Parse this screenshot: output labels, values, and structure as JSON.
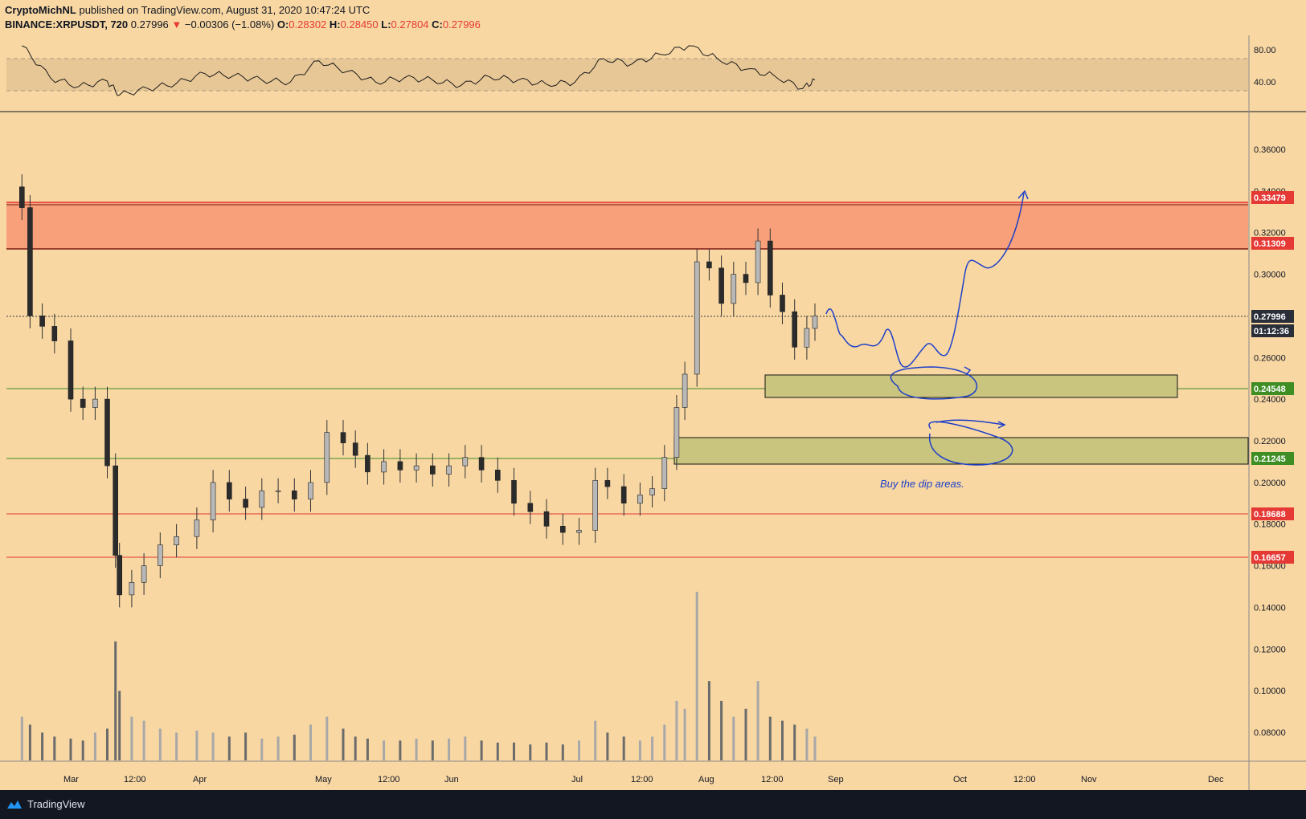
{
  "header": {
    "author": "CryptoMichNL",
    "published": "published on TradingView.com, August 31, 2020 10:47:24 UTC",
    "symbol": "BINANCE:XRPUSDT, 720",
    "last": "0.27996",
    "change_arrow": "▼",
    "change": "−0.00306 (−1.08%)",
    "o_label": "O:",
    "o_value": "0.28302",
    "h_label": "H:",
    "h_value": "0.28450",
    "l_label": "L:",
    "l_value": "0.27804",
    "c_label": "C:",
    "c_value": "0.27996"
  },
  "footer": {
    "brand": "TradingView",
    "logo_icon": "tradingview-logo-icon"
  },
  "colors": {
    "background": "#f8d7a3",
    "resistance_zone": "#f7a07a",
    "support_zone": "#c9c47e",
    "red_level": "#e53935",
    "green_level": "#3e8e23",
    "drawing": "#1e40c8",
    "candle_up": "#b8b8b8",
    "candle_down": "#2b2b2b"
  },
  "chart_data": [
    {
      "type": "line",
      "name": "RSI",
      "ylim": [
        20,
        95
      ],
      "yticks": [
        "80.00",
        "40.00"
      ],
      "band": [
        30,
        70
      ],
      "x": [
        "Feb 18",
        "Feb 25",
        "Mar 3",
        "Mar 10",
        "Mar 13",
        "Mar 20",
        "Mar 27",
        "Apr 3",
        "Apr 10",
        "Apr 17",
        "Apr 24",
        "May 1",
        "May 8",
        "May 15",
        "May 22",
        "May 29",
        "Jun 5",
        "Jun 12",
        "Jun 19",
        "Jun 26",
        "Jul 3",
        "Jul 10",
        "Jul 17",
        "Jul 24",
        "Jul 31",
        "Aug 7",
        "Aug 14",
        "Aug 21",
        "Aug 28",
        "Aug 31"
      ],
      "values": [
        82,
        52,
        44,
        49,
        36,
        42,
        47,
        56,
        54,
        50,
        48,
        68,
        58,
        48,
        52,
        50,
        45,
        53,
        50,
        46,
        48,
        70,
        65,
        74,
        82,
        70,
        60,
        54,
        42,
        50
      ]
    },
    {
      "type": "candlestick",
      "name": "XRPUSDT",
      "timeframe": "720",
      "ylim": [
        0.076,
        0.394
      ],
      "yticks": [
        "0.36000",
        "0.34000",
        "0.32000",
        "0.30000",
        "0.26000",
        "0.24000",
        "0.22000",
        "0.20000",
        "0.18000",
        "0.16000",
        "0.14000",
        "0.12000",
        "0.10000",
        "0.08000"
      ],
      "xticks": [
        "Mar",
        "12:00",
        "Apr",
        "May",
        "12:00",
        "Jun",
        "Jul",
        "12:00",
        "Aug",
        "12:00",
        "Sep",
        "Oct",
        "12:00",
        "Nov",
        "Dec"
      ],
      "x": [
        "Feb 18",
        "Feb 20",
        "Feb 23",
        "Feb 26",
        "Mar 1",
        "Mar 4",
        "Mar 7",
        "Mar 10",
        "Mar 12",
        "Mar 13",
        "Mar 16",
        "Mar 19",
        "Mar 23",
        "Mar 27",
        "Apr 1",
        "Apr 5",
        "Apr 9",
        "Apr 13",
        "Apr 17",
        "Apr 21",
        "Apr 25",
        "Apr 29",
        "May 3",
        "May 7",
        "May 10",
        "May 13",
        "May 17",
        "May 21",
        "May 25",
        "May 29",
        "Jun 2",
        "Jun 6",
        "Jun 10",
        "Jun 14",
        "Jun 18",
        "Jun 22",
        "Jun 26",
        "Jun 30",
        "Jul 4",
        "Jul 8",
        "Jul 11",
        "Jul 15",
        "Jul 19",
        "Jul 22",
        "Jul 25",
        "Jul 28",
        "Jul 30",
        "Aug 2",
        "Aug 5",
        "Aug 8",
        "Aug 11",
        "Aug 14",
        "Aug 17",
        "Aug 20",
        "Aug 23",
        "Aug 26",
        "Aug 29",
        "Aug 31"
      ],
      "close": [
        0.332,
        0.28,
        0.275,
        0.268,
        0.24,
        0.236,
        0.24,
        0.208,
        0.165,
        0.146,
        0.152,
        0.16,
        0.17,
        0.174,
        0.182,
        0.2,
        0.192,
        0.188,
        0.196,
        0.196,
        0.192,
        0.2,
        0.224,
        0.219,
        0.213,
        0.205,
        0.21,
        0.206,
        0.208,
        0.204,
        0.208,
        0.212,
        0.206,
        0.201,
        0.19,
        0.186,
        0.179,
        0.176,
        0.177,
        0.201,
        0.198,
        0.19,
        0.194,
        0.197,
        0.212,
        0.236,
        0.252,
        0.306,
        0.303,
        0.286,
        0.3,
        0.296,
        0.316,
        0.29,
        0.282,
        0.265,
        0.274,
        0.27996
      ],
      "volume": [
        22,
        18,
        14,
        12,
        11,
        10,
        14,
        16,
        60,
        35,
        22,
        20,
        16,
        14,
        15,
        14,
        12,
        14,
        11,
        12,
        13,
        18,
        22,
        16,
        12,
        11,
        10,
        10,
        11,
        10,
        11,
        12,
        10,
        9,
        9,
        8,
        9,
        8,
        10,
        20,
        14,
        12,
        10,
        12,
        18,
        30,
        26,
        85,
        40,
        30,
        22,
        26,
        40,
        22,
        20,
        18,
        16,
        12
      ]
    }
  ],
  "levels": {
    "resistance_top": "0.33479",
    "resistance_bottom": "0.31309",
    "current_price": "0.27996",
    "countdown": "01:12:36",
    "support_1": "0.24548",
    "support_2": "0.21245",
    "red_1": "0.18688",
    "red_2": "0.16657"
  },
  "annotation": "Buy the dip areas."
}
